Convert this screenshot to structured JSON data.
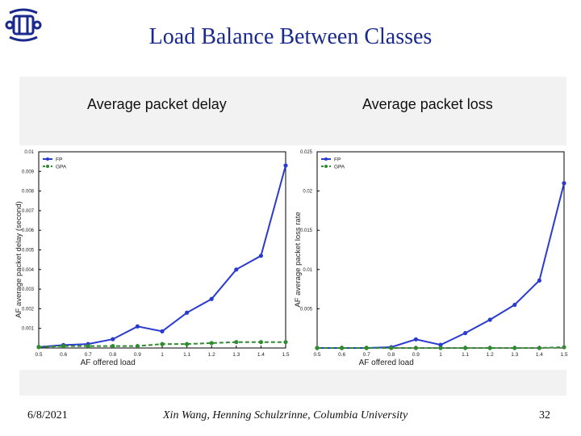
{
  "slide": {
    "title": "Load Balance Between Classes",
    "footer_date": "6/8/2021",
    "footer_author": "Xin Wang, Henning Schulzrinne, Columbia University",
    "footer_page": "32"
  },
  "colors": {
    "title": "#1a2a8c",
    "fp": "#2a3bcf",
    "gpa": "#2e8b2e"
  },
  "chart_data": [
    {
      "type": "line",
      "title": "Average packet delay",
      "xlabel": "AF offered load",
      "ylabel": "AF average packet delay (second)",
      "x": [
        0.5,
        0.6,
        0.7,
        0.8,
        0.9,
        1,
        1.1,
        1.2,
        1.3,
        1.4,
        1.5
      ],
      "xtick_labels": [
        "0.5",
        "0.6",
        "0.7",
        "0.8",
        "0.9",
        "1",
        "1.1",
        "1.2",
        "1.3",
        "1.4",
        "1.5"
      ],
      "xlim": [
        0.5,
        1.5
      ],
      "ylim": [
        0,
        0.01
      ],
      "yticks": [
        0.001,
        0.002,
        0.003,
        0.004,
        0.005,
        0.006,
        0.007,
        0.008,
        0.009,
        0.01
      ],
      "ytick_labels": [
        "0.001",
        "0.002",
        "0.003",
        "0.004",
        "0.005",
        "0.006",
        "0.007",
        "0.008",
        "0.009",
        "0.01"
      ],
      "legend_placement": "top-left",
      "series": [
        {
          "name": "FP",
          "style": "solid",
          "values": [
            5e-05,
            0.00015,
            0.0002,
            0.00045,
            0.0011,
            0.00085,
            0.0018,
            0.0025,
            0.004,
            0.0047,
            0.0093
          ]
        },
        {
          "name": "GPA",
          "style": "dashed",
          "values": [
            5e-05,
            0.0001,
            0.0001,
            0.0001,
            0.0001,
            0.0002,
            0.0002,
            0.00025,
            0.0003,
            0.0003,
            0.0003
          ]
        }
      ]
    },
    {
      "type": "line",
      "title": "Average packet loss",
      "xlabel": "AF offered load",
      "ylabel": "AF average packet loss rate",
      "x": [
        0.5,
        0.6,
        0.7,
        0.8,
        0.9,
        1,
        1.1,
        1.2,
        1.3,
        1.4,
        1.5
      ],
      "xtick_labels": [
        "0.5",
        "0.6",
        "0.7",
        "0.8",
        "0.9",
        "1",
        "1.1",
        "1.2",
        "1.3",
        "1.4",
        "1.5"
      ],
      "xlim": [
        0.5,
        1.5
      ],
      "ylim": [
        0,
        0.025
      ],
      "yticks": [
        0.005,
        0.01,
        0.015,
        0.02,
        0.025
      ],
      "ytick_labels": [
        "0.005",
        "0.01",
        "0.015",
        "0.02",
        "0.025"
      ],
      "legend_placement": "top-left",
      "series": [
        {
          "name": "FP",
          "style": "solid",
          "values": [
            0,
            0,
            0,
            0.0001,
            0.0011,
            0.0004,
            0.0019,
            0.0036,
            0.0055,
            0.0086,
            0.021
          ]
        },
        {
          "name": "GPA",
          "style": "dashed",
          "values": [
            0,
            0,
            0,
            0,
            0,
            0,
            0,
            0,
            0,
            0,
            0.0001
          ]
        }
      ]
    }
  ]
}
